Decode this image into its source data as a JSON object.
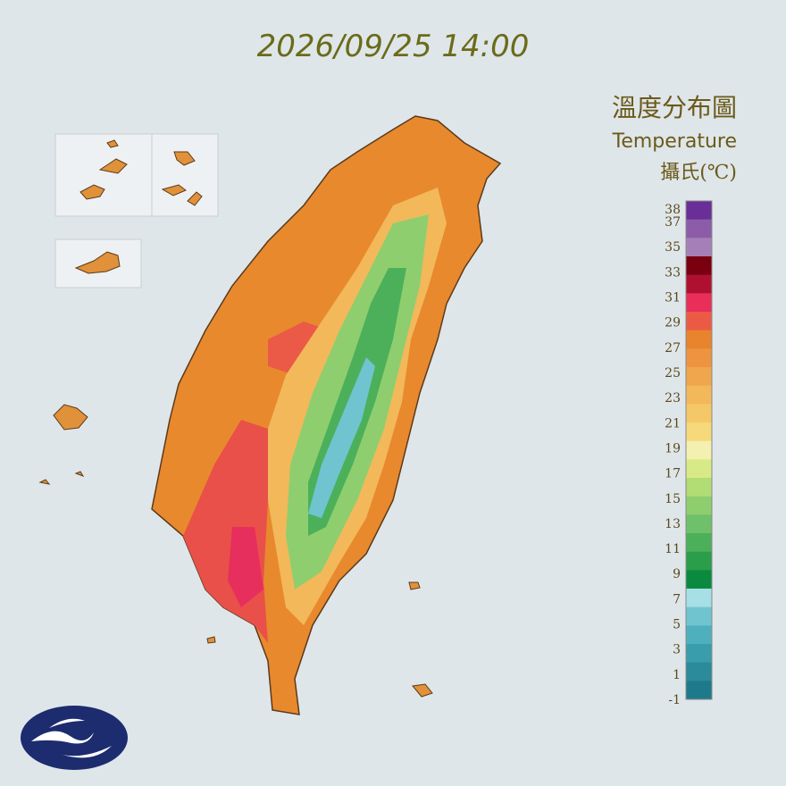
{
  "header": {
    "timestamp": "2026/09/25 14:00"
  },
  "legend": {
    "title": "溫度分布圖",
    "subtitle": "Temperature",
    "unit": "攝氏(℃)",
    "labels": [
      38,
      37,
      35,
      33,
      31,
      29,
      27,
      25,
      23,
      21,
      19,
      17,
      15,
      13,
      11,
      9,
      7,
      5,
      3,
      1,
      -1
    ],
    "colors": [
      "#6a2e98",
      "#8c5ca8",
      "#a580b8",
      "#7a0010",
      "#b01030",
      "#e92e5a",
      "#ec5a45",
      "#e8832e",
      "#ee9440",
      "#f0a64c",
      "#f3b85a",
      "#f4c868",
      "#f5d97a",
      "#f4f0b0",
      "#d8ea86",
      "#b2dc74",
      "#8fce6e",
      "#6ec06a",
      "#4cb05a",
      "#2a9e4a",
      "#0a8a3f",
      "#a6dfe6",
      "#6fc4cf",
      "#4fb0bd",
      "#3a9dab",
      "#2b8b9a",
      "#1e7a8a"
    ]
  }
}
